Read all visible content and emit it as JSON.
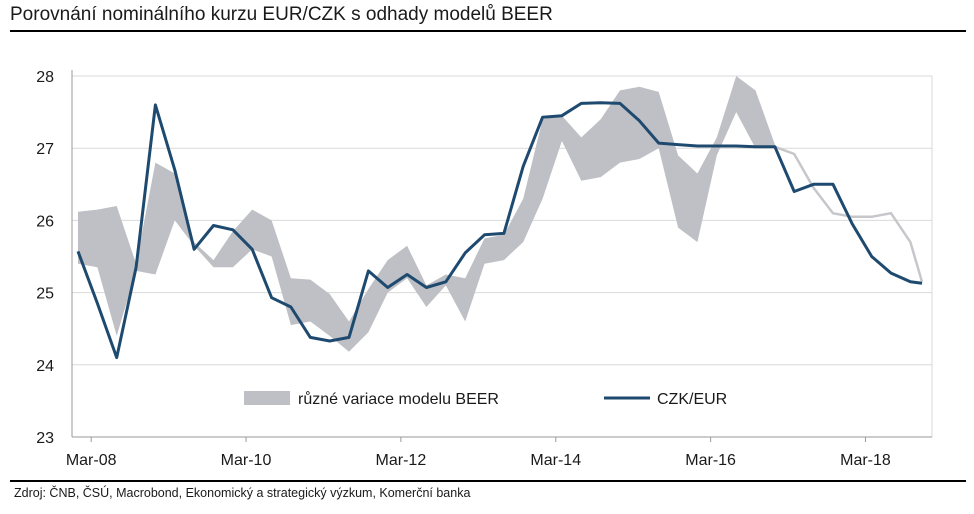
{
  "title": "Porovnání nominálního kurzu EUR/CZK s odhady modelů BEER",
  "source": "Zdroj: ČNB, ČSÚ, Macrobond, Ekonomický a strategický výzkum, Komerční banka",
  "colors": {
    "band": "#bfc0c5",
    "band_forecast": "#c6c7cb",
    "line": "#1f4a70",
    "grid": "#d9d9d9",
    "axis": "#9a9a9a"
  },
  "chart_data": {
    "type": "area",
    "x_tick_labels": [
      "Mar-08",
      "Mar-10",
      "Mar-12",
      "Mar-14",
      "Mar-16",
      "Mar-18"
    ],
    "x_tick_dates": [
      2008.17,
      2010.17,
      2012.17,
      2014.17,
      2016.17,
      2018.17
    ],
    "y_ticks": [
      23,
      24,
      25,
      26,
      27,
      28
    ],
    "ylim": [
      23,
      28
    ],
    "xlim": [
      2008.0,
      2018.9
    ],
    "grid": true,
    "legend_position": "bottom-center",
    "legend": {
      "band_label": "různé variace modelu BEER",
      "line_label": "CZK/EUR"
    },
    "series": [
      {
        "name": "různé variace modelu BEER",
        "kind": "band",
        "x": [
          2008.0,
          2008.25,
          2008.5,
          2008.75,
          2009.0,
          2009.25,
          2009.5,
          2009.75,
          2010.0,
          2010.25,
          2010.5,
          2010.75,
          2011.0,
          2011.25,
          2011.5,
          2011.75,
          2012.0,
          2012.25,
          2012.5,
          2012.75,
          2013.0,
          2013.25,
          2013.5,
          2013.75,
          2014.0,
          2014.25,
          2014.5,
          2014.75,
          2015.0,
          2015.25,
          2015.5,
          2015.75,
          2016.0,
          2016.25,
          2016.5,
          2016.75,
          2017.0
        ],
        "low": [
          25.4,
          25.35,
          24.4,
          25.3,
          25.25,
          26.0,
          25.65,
          25.35,
          25.35,
          25.6,
          25.5,
          24.55,
          24.6,
          24.4,
          24.18,
          24.45,
          25.0,
          25.2,
          24.8,
          25.1,
          24.6,
          25.4,
          25.45,
          25.7,
          26.3,
          27.1,
          26.55,
          26.6,
          26.8,
          26.85,
          27.0,
          25.9,
          25.7,
          26.9,
          27.5,
          27.0,
          27.0
        ],
        "high": [
          26.12,
          26.15,
          26.2,
          25.4,
          26.8,
          26.65,
          25.7,
          25.45,
          25.85,
          26.15,
          26.0,
          25.2,
          25.18,
          24.98,
          24.6,
          25.05,
          25.45,
          25.65,
          25.1,
          25.25,
          25.2,
          25.75,
          25.8,
          26.3,
          27.4,
          27.45,
          27.15,
          27.4,
          27.8,
          27.85,
          27.78,
          26.9,
          26.65,
          27.15,
          28.0,
          27.8,
          27.05
        ]
      },
      {
        "name": "různé variace modelu BEER",
        "kind": "forecast",
        "x": [
          2017.0,
          2017.25,
          2017.5,
          2017.75,
          2018.0,
          2018.25,
          2018.5,
          2018.75,
          2018.9
        ],
        "values": [
          27.02,
          26.92,
          26.45,
          26.1,
          26.05,
          26.05,
          26.1,
          25.7,
          25.15
        ]
      },
      {
        "name": "CZK/EUR",
        "kind": "line",
        "x": [
          2008.0,
          2008.25,
          2008.5,
          2008.75,
          2009.0,
          2009.25,
          2009.5,
          2009.75,
          2010.0,
          2010.25,
          2010.5,
          2010.75,
          2011.0,
          2011.25,
          2011.5,
          2011.75,
          2012.0,
          2012.25,
          2012.5,
          2012.75,
          2013.0,
          2013.25,
          2013.5,
          2013.75,
          2014.0,
          2014.25,
          2014.5,
          2014.75,
          2015.0,
          2015.25,
          2015.5,
          2015.75,
          2016.0,
          2016.25,
          2016.5,
          2016.75,
          2017.0,
          2017.25,
          2017.5,
          2017.75,
          2018.0,
          2018.25,
          2018.5,
          2018.75,
          2018.9
        ],
        "values": [
          25.57,
          24.85,
          24.1,
          25.35,
          27.6,
          26.7,
          25.6,
          25.93,
          25.87,
          25.6,
          24.93,
          24.8,
          24.38,
          24.33,
          24.38,
          25.3,
          25.07,
          25.25,
          25.07,
          25.15,
          25.55,
          25.8,
          25.82,
          26.75,
          27.43,
          27.45,
          27.62,
          27.63,
          27.62,
          27.38,
          27.07,
          27.05,
          27.03,
          27.03,
          27.03,
          27.02,
          27.02,
          26.4,
          26.5,
          26.5,
          25.95,
          25.5,
          25.27,
          25.15,
          25.13
        ]
      }
    ]
  }
}
